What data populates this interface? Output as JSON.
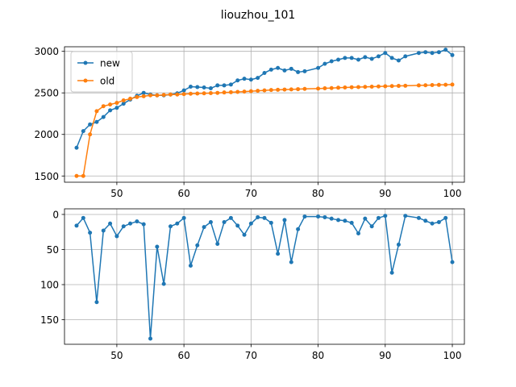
{
  "figure": {
    "title": "liouzhou_101"
  },
  "chart_data": [
    {
      "type": "line",
      "xlim": [
        42.2,
        101.8
      ],
      "ylim": [
        1425,
        3055
      ],
      "xticks": [
        50,
        60,
        70,
        80,
        90,
        100
      ],
      "yticks": [
        1500,
        2000,
        2500,
        3000
      ],
      "y_inverted": false,
      "grid": true,
      "legend": {
        "placement": "top-left"
      },
      "series": [
        {
          "name": "new",
          "color": "#1f77b4",
          "x": [
            44,
            45,
            46,
            47,
            48,
            49,
            50,
            51,
            52,
            53,
            54,
            55,
            56,
            57,
            58,
            59,
            60,
            61,
            62,
            63,
            64,
            65,
            66,
            67,
            68,
            69,
            70,
            71,
            72,
            73,
            74,
            75,
            76,
            77,
            78,
            80,
            81,
            82,
            83,
            84,
            85,
            86,
            87,
            88,
            89,
            90,
            91,
            92,
            93,
            95,
            96,
            97,
            98,
            99,
            100
          ],
          "values": [
            1840,
            2040,
            2120,
            2150,
            2210,
            2290,
            2320,
            2370,
            2420,
            2465,
            2500,
            2480,
            2470,
            2470,
            2480,
            2495,
            2530,
            2575,
            2570,
            2565,
            2555,
            2590,
            2590,
            2600,
            2650,
            2670,
            2660,
            2680,
            2740,
            2780,
            2800,
            2770,
            2790,
            2750,
            2760,
            2800,
            2850,
            2880,
            2900,
            2920,
            2920,
            2900,
            2930,
            2910,
            2940,
            2980,
            2920,
            2890,
            2940,
            2980,
            2990,
            2980,
            2990,
            3020,
            2955
          ]
        },
        {
          "name": "old",
          "color": "#ff7f0e",
          "x": [
            44,
            45,
            46,
            47,
            48,
            49,
            50,
            51,
            52,
            53,
            54,
            55,
            56,
            57,
            58,
            59,
            60,
            61,
            62,
            63,
            64,
            65,
            66,
            67,
            68,
            69,
            70,
            71,
            72,
            73,
            74,
            75,
            76,
            77,
            78,
            80,
            81,
            82,
            83,
            84,
            85,
            86,
            87,
            88,
            89,
            90,
            91,
            92,
            93,
            95,
            96,
            97,
            98,
            99,
            100
          ],
          "values": [
            1500,
            1500,
            2000,
            2280,
            2340,
            2360,
            2380,
            2410,
            2430,
            2450,
            2460,
            2470,
            2470,
            2475,
            2480,
            2480,
            2485,
            2490,
            2492,
            2495,
            2497,
            2500,
            2505,
            2508,
            2512,
            2515,
            2520,
            2525,
            2530,
            2535,
            2537,
            2540,
            2542,
            2545,
            2548,
            2552,
            2555,
            2558,
            2562,
            2565,
            2568,
            2570,
            2572,
            2575,
            2577,
            2580,
            2582,
            2584,
            2586,
            2590,
            2592,
            2594,
            2596,
            2598,
            2600
          ]
        }
      ]
    },
    {
      "type": "line",
      "xlim": [
        42.2,
        101.8
      ],
      "ylim": [
        185,
        -8
      ],
      "xticks": [
        50,
        60,
        70,
        80,
        90,
        100
      ],
      "yticks": [
        0,
        50,
        100,
        150
      ],
      "y_inverted": true,
      "grid": true,
      "series": [
        {
          "color": "#1f77b4",
          "x": [
            44,
            45,
            46,
            47,
            48,
            49,
            50,
            51,
            52,
            53,
            54,
            55,
            56,
            57,
            58,
            59,
            60,
            61,
            62,
            63,
            64,
            65,
            66,
            67,
            68,
            69,
            70,
            71,
            72,
            73,
            74,
            75,
            76,
            77,
            78,
            80,
            81,
            82,
            83,
            84,
            85,
            86,
            87,
            88,
            89,
            90,
            91,
            92,
            93,
            95,
            96,
            97,
            98,
            99,
            100
          ],
          "values": [
            16,
            5,
            26,
            125,
            23,
            13,
            31,
            17,
            13,
            10,
            14,
            177,
            46,
            99,
            17,
            13,
            5,
            73,
            44,
            18,
            11,
            42,
            11,
            5,
            16,
            29,
            13,
            4,
            5,
            12,
            56,
            8,
            68,
            21,
            3,
            3,
            4,
            6,
            8,
            9,
            12,
            27,
            6,
            17,
            5,
            2,
            83,
            43,
            2,
            5,
            9,
            13,
            11,
            5,
            68
          ]
        }
      ]
    }
  ]
}
